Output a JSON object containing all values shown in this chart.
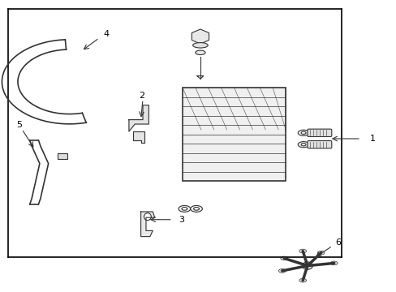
{
  "bg_color": "#ffffff",
  "line_color": "#333333",
  "box_color": "#000000",
  "fig_width": 4.89,
  "fig_height": 3.6,
  "dpi": 100,
  "bx0": 0.02,
  "by0": 0.12,
  "bx1": 0.86,
  "by1": 0.97,
  "lw_main": 1.2,
  "lw_thin": 0.8
}
